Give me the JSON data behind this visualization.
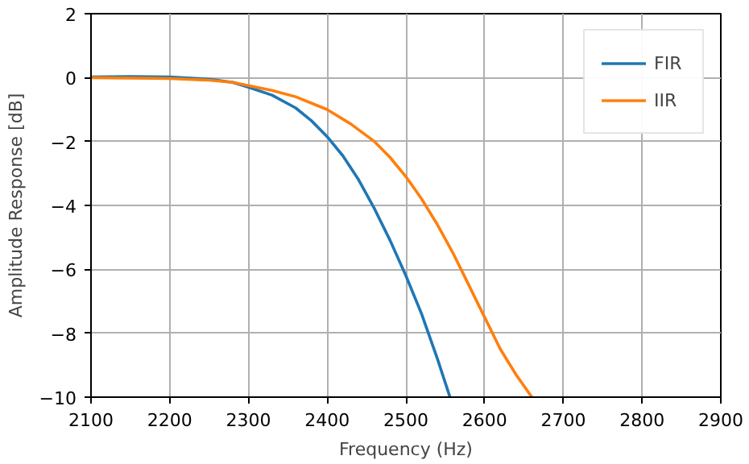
{
  "chart_data": {
    "type": "line",
    "xlabel": "Frequency (Hz)",
    "ylabel": "Amplitude Response [dB]",
    "xlim": [
      2100,
      2900
    ],
    "xticks": [
      2100,
      2200,
      2300,
      2400,
      2500,
      2600,
      2700,
      2800,
      2900
    ],
    "ylim": [
      -10,
      2
    ],
    "yticks": [
      -10,
      -8,
      -6,
      -4,
      -2,
      0,
      2
    ],
    "grid": true,
    "legend": "top right",
    "line_style": "solid",
    "series": [
      {
        "name": "FIR",
        "color": "#1f77b4",
        "x": [
          2100,
          2150,
          2200,
          2250,
          2280,
          2300,
          2330,
          2360,
          2380,
          2400,
          2420,
          2440,
          2460,
          2480,
          2500,
          2520,
          2540,
          2556
        ],
        "values": [
          0.02,
          0.03,
          0.02,
          -0.05,
          -0.15,
          -0.3,
          -0.55,
          -0.95,
          -1.35,
          -1.85,
          -2.45,
          -3.2,
          -4.1,
          -5.1,
          -6.2,
          -7.4,
          -8.8,
          -10
        ]
      },
      {
        "name": "IIR",
        "color": "#ff7f0e",
        "x": [
          2100,
          2200,
          2250,
          2280,
          2300,
          2330,
          2360,
          2400,
          2430,
          2460,
          2480,
          2500,
          2520,
          2540,
          2560,
          2580,
          2600,
          2620,
          2640,
          2660
        ],
        "values": [
          0,
          -0.03,
          -0.08,
          -0.15,
          -0.25,
          -0.4,
          -0.6,
          -1.0,
          -1.45,
          -2.0,
          -2.5,
          -3.1,
          -3.8,
          -4.6,
          -5.5,
          -6.5,
          -7.5,
          -8.5,
          -9.3,
          -10
        ]
      }
    ]
  }
}
